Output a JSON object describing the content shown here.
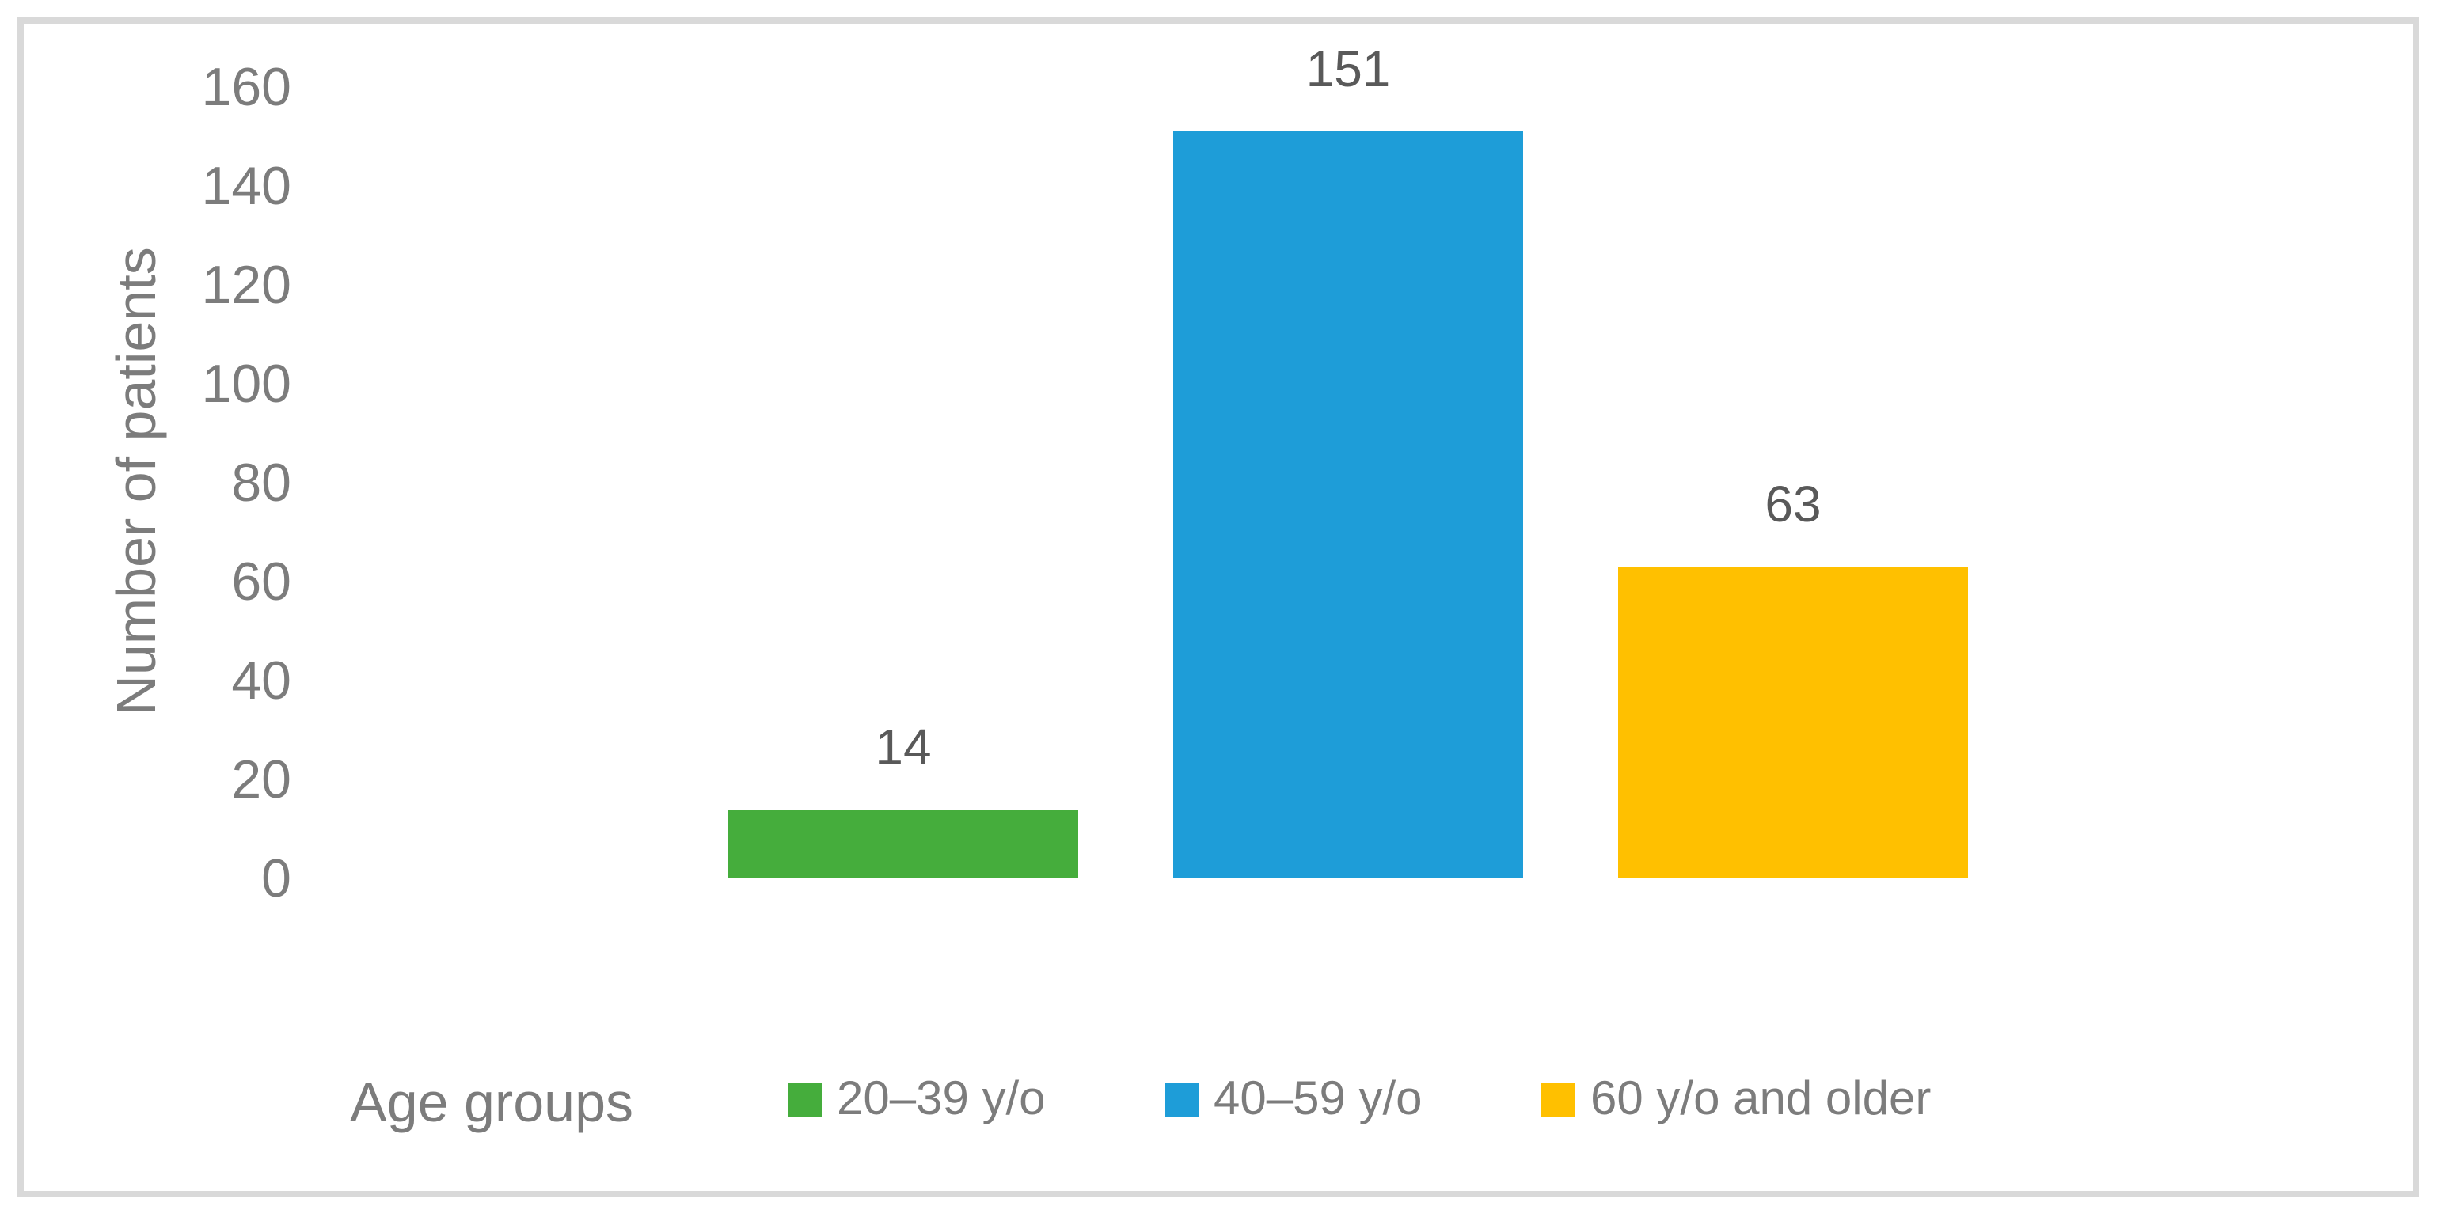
{
  "figure": {
    "background_color": "#FFFFFF",
    "border_color": "#D9D9D9",
    "tick_label_color": "#7C7C7C",
    "axis_title_color": "#7C7C7C",
    "value_label_color": "#595959"
  },
  "chart_data": {
    "type": "bar",
    "title": "",
    "xlabel": "Age groups",
    "ylabel": "Number of patients",
    "categories": [
      "20–39 y/o",
      "40–59 y/o",
      "60 y/o and older"
    ],
    "values": [
      14,
      151,
      63
    ],
    "value_labels": [
      "14",
      "151",
      "63"
    ],
    "series_colors": [
      "#45AD3C",
      "#1E9DD8",
      "#FFC000"
    ],
    "ylim": [
      0,
      160
    ],
    "yticks": [
      0,
      20,
      40,
      60,
      80,
      100,
      120,
      140,
      160
    ],
    "grid": false,
    "axis_lines": false,
    "legend_position": "bottom",
    "legend_items": [
      {
        "label": "20–39 y/o",
        "color": "#45AD3C"
      },
      {
        "label": "40–59 y/o",
        "color": "#1E9DD8"
      },
      {
        "label": "60 y/o and older",
        "color": "#FFC000"
      }
    ]
  }
}
